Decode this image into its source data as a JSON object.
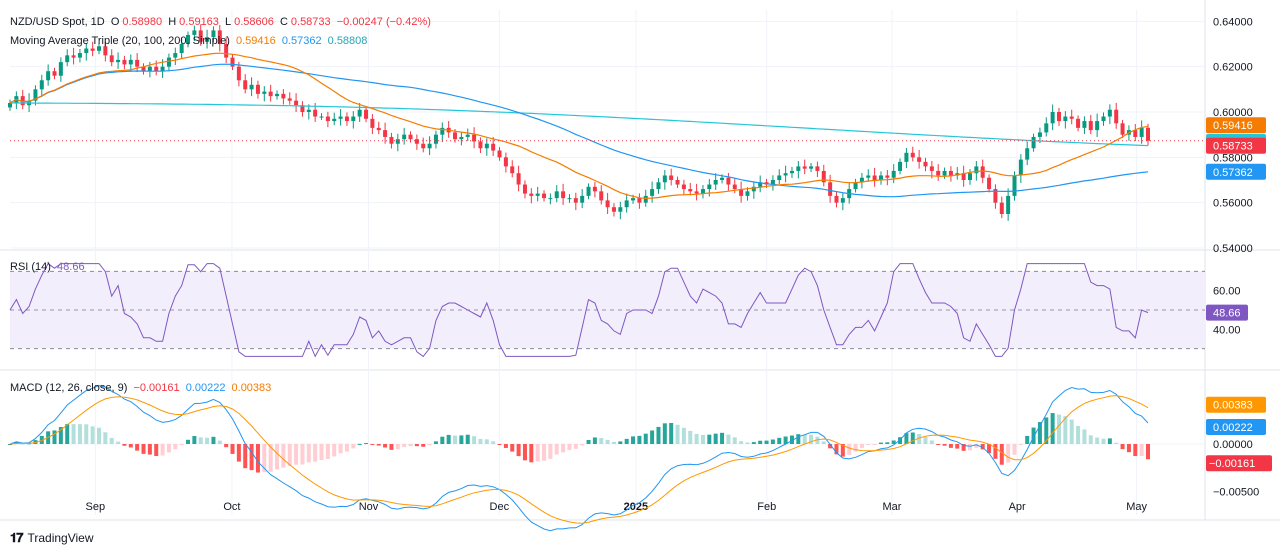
{
  "colors": {
    "up": "#089981",
    "down": "#f23645",
    "ma20": "#f57c00",
    "ma100": "#2196f3",
    "ma200": "#26c6da",
    "rsi": "#7e57c2",
    "rsi_band": "#f3eefc",
    "macd": "#2196f3",
    "signal": "#ff9800",
    "hist_up_strong": "#26a69a",
    "hist_up_weak": "#b2dfdb",
    "hist_down_strong": "#ff5252",
    "hist_down_weak": "#ffcdd2",
    "grid": "#f0f3fa",
    "separator": "#e0e3eb"
  },
  "legend": {
    "symbol": "NZD/USD Spot, 1D",
    "o_label": "O",
    "o": "0.58980",
    "h_label": "H",
    "h": "0.59163",
    "l_label": "L",
    "l": "0.58606",
    "c_label": "C",
    "c": "0.58733",
    "change": "−0.00247 (−0.42%)",
    "ma_title": "Moving Average Triple (20, 100, 200, Simple)",
    "ma20": "0.59416",
    "ma100": "0.57362",
    "ma200": "0.58808",
    "rsi_title": "RSI (14)",
    "rsi_value": "48.66",
    "macd_title": "MACD (12, 26, close, 9)",
    "macd_hist": "−0.00161",
    "macd_line": "0.00222",
    "macd_signal": "0.00383"
  },
  "footer": {
    "brand": "TradingView"
  },
  "chart_data": [
    {
      "type": "candlestick",
      "title": "NZD/USD Spot, 1D",
      "ylim": [
        0.54,
        0.645
      ],
      "y_ticks": [
        "0.64000",
        "0.62000",
        "0.60000",
        "0.58000",
        "0.56000",
        "0.54000"
      ],
      "x_ticks": [
        "Sep",
        "Oct",
        "Nov",
        "Dec",
        "2025",
        "Feb",
        "Mar",
        "Apr",
        "May"
      ],
      "close_series": [
        0.604,
        0.607,
        0.603,
        0.605,
        0.61,
        0.614,
        0.618,
        0.616,
        0.622,
        0.625,
        0.624,
        0.626,
        0.628,
        0.627,
        0.629,
        0.625,
        0.622,
        0.623,
        0.621,
        0.623,
        0.62,
        0.618,
        0.62,
        0.618,
        0.62,
        0.624,
        0.626,
        0.63,
        0.634,
        0.636,
        0.631,
        0.633,
        0.636,
        0.63,
        0.624,
        0.62,
        0.614,
        0.61,
        0.612,
        0.608,
        0.609,
        0.607,
        0.608,
        0.606,
        0.605,
        0.603,
        0.6,
        0.601,
        0.598,
        0.598,
        0.596,
        0.597,
        0.598,
        0.596,
        0.598,
        0.601,
        0.597,
        0.593,
        0.592,
        0.589,
        0.586,
        0.588,
        0.59,
        0.588,
        0.586,
        0.584,
        0.586,
        0.59,
        0.593,
        0.591,
        0.588,
        0.589,
        0.59,
        0.587,
        0.584,
        0.586,
        0.583,
        0.58,
        0.576,
        0.573,
        0.568,
        0.564,
        0.563,
        0.564,
        0.562,
        0.562,
        0.565,
        0.562,
        0.562,
        0.56,
        0.563,
        0.567,
        0.565,
        0.561,
        0.558,
        0.556,
        0.558,
        0.561,
        0.562,
        0.56,
        0.563,
        0.566,
        0.569,
        0.572,
        0.57,
        0.568,
        0.566,
        0.565,
        0.564,
        0.566,
        0.568,
        0.57,
        0.571,
        0.568,
        0.566,
        0.563,
        0.565,
        0.567,
        0.569,
        0.568,
        0.57,
        0.572,
        0.573,
        0.574,
        0.576,
        0.575,
        0.576,
        0.574,
        0.569,
        0.563,
        0.56,
        0.562,
        0.566,
        0.569,
        0.571,
        0.572,
        0.57,
        0.572,
        0.571,
        0.574,
        0.578,
        0.582,
        0.58,
        0.578,
        0.576,
        0.574,
        0.572,
        0.574,
        0.572,
        0.573,
        0.57,
        0.573,
        0.576,
        0.571,
        0.566,
        0.56,
        0.555,
        0.563,
        0.572,
        0.579,
        0.584,
        0.589,
        0.591,
        0.595,
        0.6,
        0.596,
        0.598,
        0.597,
        0.593,
        0.596,
        0.592,
        0.596,
        0.598,
        0.601,
        0.595,
        0.59,
        0.592,
        0.589,
        0.593,
        0.5873
      ],
      "ma20_last": 0.59416,
      "ma100_last": 0.57362,
      "ma200_last": 0.58808,
      "last_close": 0.58733
    },
    {
      "type": "line",
      "title": "RSI (14)",
      "ylim": [
        20,
        80
      ],
      "y_ticks": [
        "60.00",
        "40.00"
      ],
      "bands": [
        70,
        50,
        30
      ],
      "last": 48.66
    },
    {
      "type": "bar",
      "title": "MACD (12, 26, close, 9)",
      "ylim": [
        -0.0075,
        0.0075
      ],
      "y_ticks": [
        "0.00000",
        "−0.00500"
      ],
      "macd_last": 0.00222,
      "signal_last": 0.00383,
      "hist_last": -0.00161
    }
  ]
}
